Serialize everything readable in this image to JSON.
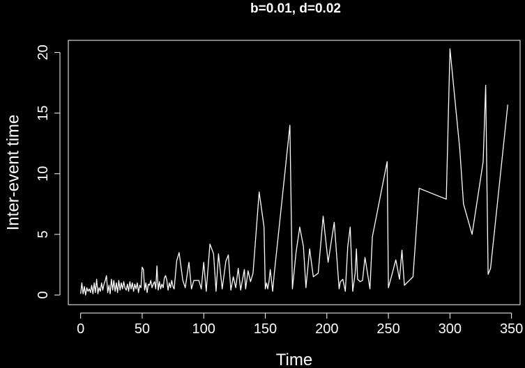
{
  "chart_data": {
    "type": "line",
    "title": "b=0.01, d=0.02",
    "xlabel": "Time",
    "ylabel": "Inter-event time",
    "xlim": [
      -10,
      357
    ],
    "ylim": [
      -0.8,
      21
    ],
    "x_ticks": [
      0,
      50,
      100,
      150,
      200,
      250,
      300,
      350
    ],
    "y_ticks": [
      0,
      5,
      10,
      15,
      20
    ],
    "x_tick_labels": [
      "0",
      "50",
      "100",
      "150",
      "200",
      "250",
      "300",
      "350"
    ],
    "y_tick_labels": [
      "0",
      "5",
      "10",
      "15",
      "20"
    ],
    "grid": false,
    "colors": {
      "background": "#000000",
      "foreground": "#ffffff",
      "line": "#ffffff"
    },
    "series": [
      {
        "x": [
          0,
          1,
          2,
          3,
          4,
          5,
          6,
          7,
          8,
          9,
          10,
          11,
          12,
          13,
          14,
          15,
          16,
          17,
          18,
          19,
          20,
          21,
          22,
          23,
          24,
          25,
          26,
          27,
          28,
          29,
          30,
          31,
          32,
          33,
          34,
          35,
          36,
          37,
          38,
          39,
          40,
          41,
          42,
          43,
          44,
          45,
          46,
          47,
          48,
          49,
          50,
          51,
          52,
          53,
          54,
          55,
          56,
          57,
          58,
          59,
          60,
          61,
          62,
          63,
          64,
          65,
          66,
          67,
          68,
          69,
          70,
          71,
          72,
          73,
          74,
          75,
          76,
          78,
          80,
          83,
          85,
          88,
          90,
          92,
          94,
          96,
          98,
          100,
          102,
          105,
          108,
          110,
          112,
          115,
          118,
          120,
          122,
          124,
          126,
          128,
          130,
          131,
          133,
          134,
          136,
          138,
          140,
          145,
          149,
          150,
          151,
          152,
          153,
          154,
          156,
          157,
          170,
          172,
          175,
          178,
          181,
          183,
          186,
          189,
          193,
          197,
          201,
          206,
          210,
          211,
          213,
          215,
          217,
          219,
          221,
          223,
          224,
          225,
          227,
          229,
          231,
          233,
          235,
          237,
          249,
          250,
          254,
          256,
          259,
          261,
          263,
          270,
          275,
          297,
          300,
          308,
          311,
          318,
          327,
          329,
          331,
          333,
          347
        ],
        "y": [
          0.1,
          1.0,
          0.1,
          0.7,
          0.0,
          0.6,
          0.3,
          0.5,
          0.2,
          0.8,
          0.1,
          1.0,
          0.2,
          1.3,
          0.1,
          0.6,
          0.3,
          1.0,
          0.4,
          0.9,
          1.2,
          1.6,
          0.2,
          0.8,
          0.1,
          1.3,
          0.4,
          1.2,
          0.3,
          1.0,
          0.2,
          1.2,
          0.4,
          1.0,
          0.5,
          1.1,
          0.6,
          0.4,
          0.9,
          0.3,
          1.1,
          0.5,
          1.0,
          0.3,
          0.9,
          0.5,
          1.0,
          0.2,
          0.8,
          0.6,
          2.3,
          2.1,
          0.4,
          1.0,
          0.2,
          0.9,
          0.8,
          1.2,
          0.6,
          0.9,
          1.1,
          0.5,
          2.4,
          0.4,
          1.1,
          0.5,
          0.9,
          0.6,
          1.4,
          1.6,
          1.2,
          0.4,
          1.0,
          0.6,
          1.2,
          0.7,
          0.5,
          2.8,
          3.5,
          1.2,
          0.6,
          2.7,
          0.5,
          1.2,
          1.2,
          1.2,
          0.5,
          2.7,
          0.3,
          4.2,
          3.4,
          0.3,
          3.4,
          0.5,
          2.8,
          3.3,
          0.4,
          1.5,
          0.6,
          2.2,
          0.4,
          1.0,
          2.1,
          0.5,
          2.0,
          1.1,
          1.8,
          8.5,
          5.6,
          0.5,
          1.0,
          0.5,
          1.1,
          2.1,
          0.3,
          1.5,
          14.0,
          0.5,
          3.5,
          5.6,
          4.0,
          0.6,
          3.8,
          1.5,
          1.8,
          6.5,
          2.7,
          6.0,
          0.5,
          1.1,
          1.3,
          0.3,
          4.0,
          5.6,
          0.3,
          1.8,
          3.8,
          1.3,
          1.1,
          1.2,
          3.1,
          1.8,
          0.5,
          4.8,
          11.0,
          0.6,
          2.1,
          2.9,
          1.3,
          3.7,
          0.8,
          1.5,
          8.8,
          7.9,
          20.3,
          12.0,
          7.5,
          5.0,
          11.0,
          17.3,
          1.7,
          2.2,
          15.7
        ]
      }
    ]
  }
}
